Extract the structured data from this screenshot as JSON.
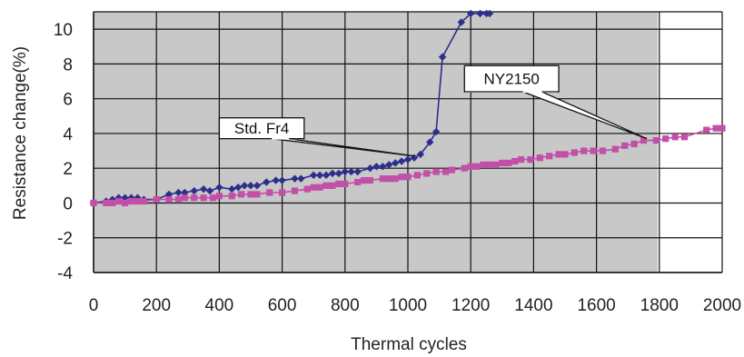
{
  "chart_data": {
    "type": "scatter",
    "xlabel": "Thermal cycles",
    "ylabel": "Resistance change(%)",
    "xlim": [
      0,
      2000
    ],
    "ylim": [
      -4,
      11
    ],
    "x_ticks": [
      "0",
      "200",
      "400",
      "600",
      "800",
      "1000",
      "1200",
      "1400",
      "1600",
      "1800",
      "2000"
    ],
    "y_ticks": [
      "10",
      "8",
      "6",
      "4",
      "2",
      "0",
      "-2",
      "-4"
    ],
    "grid": true,
    "plot_background": "#c8c8c8",
    "series": [
      {
        "name": "Std. Fr4",
        "color": "#2e2e8c",
        "marker": "diamond",
        "points": [
          [
            0,
            0.0
          ],
          [
            40,
            0.1
          ],
          [
            60,
            0.2
          ],
          [
            80,
            0.3
          ],
          [
            100,
            0.3
          ],
          [
            120,
            0.3
          ],
          [
            140,
            0.3
          ],
          [
            160,
            0.2
          ],
          [
            200,
            0.2
          ],
          [
            240,
            0.5
          ],
          [
            270,
            0.6
          ],
          [
            290,
            0.6
          ],
          [
            320,
            0.7
          ],
          [
            350,
            0.8
          ],
          [
            370,
            0.7
          ],
          [
            400,
            0.9
          ],
          [
            440,
            0.8
          ],
          [
            460,
            0.9
          ],
          [
            480,
            1.0
          ],
          [
            500,
            1.0
          ],
          [
            520,
            1.0
          ],
          [
            550,
            1.2
          ],
          [
            580,
            1.3
          ],
          [
            600,
            1.3
          ],
          [
            640,
            1.4
          ],
          [
            660,
            1.4
          ],
          [
            700,
            1.6
          ],
          [
            720,
            1.6
          ],
          [
            740,
            1.6
          ],
          [
            760,
            1.7
          ],
          [
            780,
            1.7
          ],
          [
            800,
            1.8
          ],
          [
            820,
            1.8
          ],
          [
            840,
            1.8
          ],
          [
            880,
            2.0
          ],
          [
            900,
            2.1
          ],
          [
            920,
            2.1
          ],
          [
            940,
            2.2
          ],
          [
            960,
            2.3
          ],
          [
            980,
            2.4
          ],
          [
            1000,
            2.5
          ],
          [
            1020,
            2.6
          ],
          [
            1040,
            2.8
          ],
          [
            1070,
            3.5
          ],
          [
            1090,
            4.1
          ],
          [
            1110,
            8.4
          ],
          [
            1170,
            10.4
          ],
          [
            1200,
            10.9
          ],
          [
            1230,
            10.9
          ],
          [
            1250,
            10.9
          ],
          [
            1260,
            10.9
          ]
        ]
      },
      {
        "name": "NY2150",
        "color": "#c24fa8",
        "marker": "square",
        "points": [
          [
            0,
            0.0
          ],
          [
            40,
            0.0
          ],
          [
            60,
            0.0
          ],
          [
            80,
            0.1
          ],
          [
            100,
            0.0
          ],
          [
            120,
            0.1
          ],
          [
            140,
            0.1
          ],
          [
            160,
            0.1
          ],
          [
            200,
            0.2
          ],
          [
            240,
            0.2
          ],
          [
            270,
            0.2
          ],
          [
            290,
            0.3
          ],
          [
            320,
            0.3
          ],
          [
            350,
            0.3
          ],
          [
            380,
            0.3
          ],
          [
            400,
            0.4
          ],
          [
            440,
            0.4
          ],
          [
            470,
            0.5
          ],
          [
            500,
            0.5
          ],
          [
            520,
            0.5
          ],
          [
            560,
            0.6
          ],
          [
            600,
            0.6
          ],
          [
            640,
            0.7
          ],
          [
            680,
            0.8
          ],
          [
            700,
            0.9
          ],
          [
            720,
            0.9
          ],
          [
            740,
            1.0
          ],
          [
            760,
            1.0
          ],
          [
            780,
            1.1
          ],
          [
            800,
            1.1
          ],
          [
            840,
            1.2
          ],
          [
            860,
            1.3
          ],
          [
            880,
            1.3
          ],
          [
            920,
            1.4
          ],
          [
            940,
            1.4
          ],
          [
            960,
            1.4
          ],
          [
            980,
            1.5
          ],
          [
            1000,
            1.5
          ],
          [
            1030,
            1.6
          ],
          [
            1060,
            1.7
          ],
          [
            1090,
            1.8
          ],
          [
            1120,
            1.8
          ],
          [
            1140,
            1.9
          ],
          [
            1180,
            2.0
          ],
          [
            1200,
            2.1
          ],
          [
            1220,
            2.1
          ],
          [
            1240,
            2.2
          ],
          [
            1260,
            2.2
          ],
          [
            1280,
            2.2
          ],
          [
            1300,
            2.3
          ],
          [
            1320,
            2.3
          ],
          [
            1340,
            2.4
          ],
          [
            1360,
            2.5
          ],
          [
            1390,
            2.5
          ],
          [
            1420,
            2.6
          ],
          [
            1450,
            2.7
          ],
          [
            1480,
            2.8
          ],
          [
            1500,
            2.8
          ],
          [
            1530,
            2.9
          ],
          [
            1560,
            3.0
          ],
          [
            1590,
            3.0
          ],
          [
            1620,
            3.0
          ],
          [
            1660,
            3.1
          ],
          [
            1690,
            3.3
          ],
          [
            1720,
            3.4
          ],
          [
            1750,
            3.6
          ],
          [
            1790,
            3.6
          ],
          [
            1820,
            3.7
          ],
          [
            1850,
            3.8
          ],
          [
            1880,
            3.8
          ],
          [
            1950,
            4.2
          ],
          [
            1980,
            4.3
          ],
          [
            2000,
            4.3
          ]
        ]
      }
    ],
    "annotations": [
      {
        "text": "Std. Fr4",
        "pointer_to": [
          1020,
          2.7
        ],
        "box_at_data": [
          400,
          4.9
        ],
        "box_width_data": 270,
        "box_height_data": 1.2
      },
      {
        "text": "NY2150",
        "pointer_to": [
          1760,
          3.7
        ],
        "box_at_data": [
          1180,
          7.9
        ],
        "box_width_data": 300,
        "box_height_data": 1.5
      }
    ]
  }
}
